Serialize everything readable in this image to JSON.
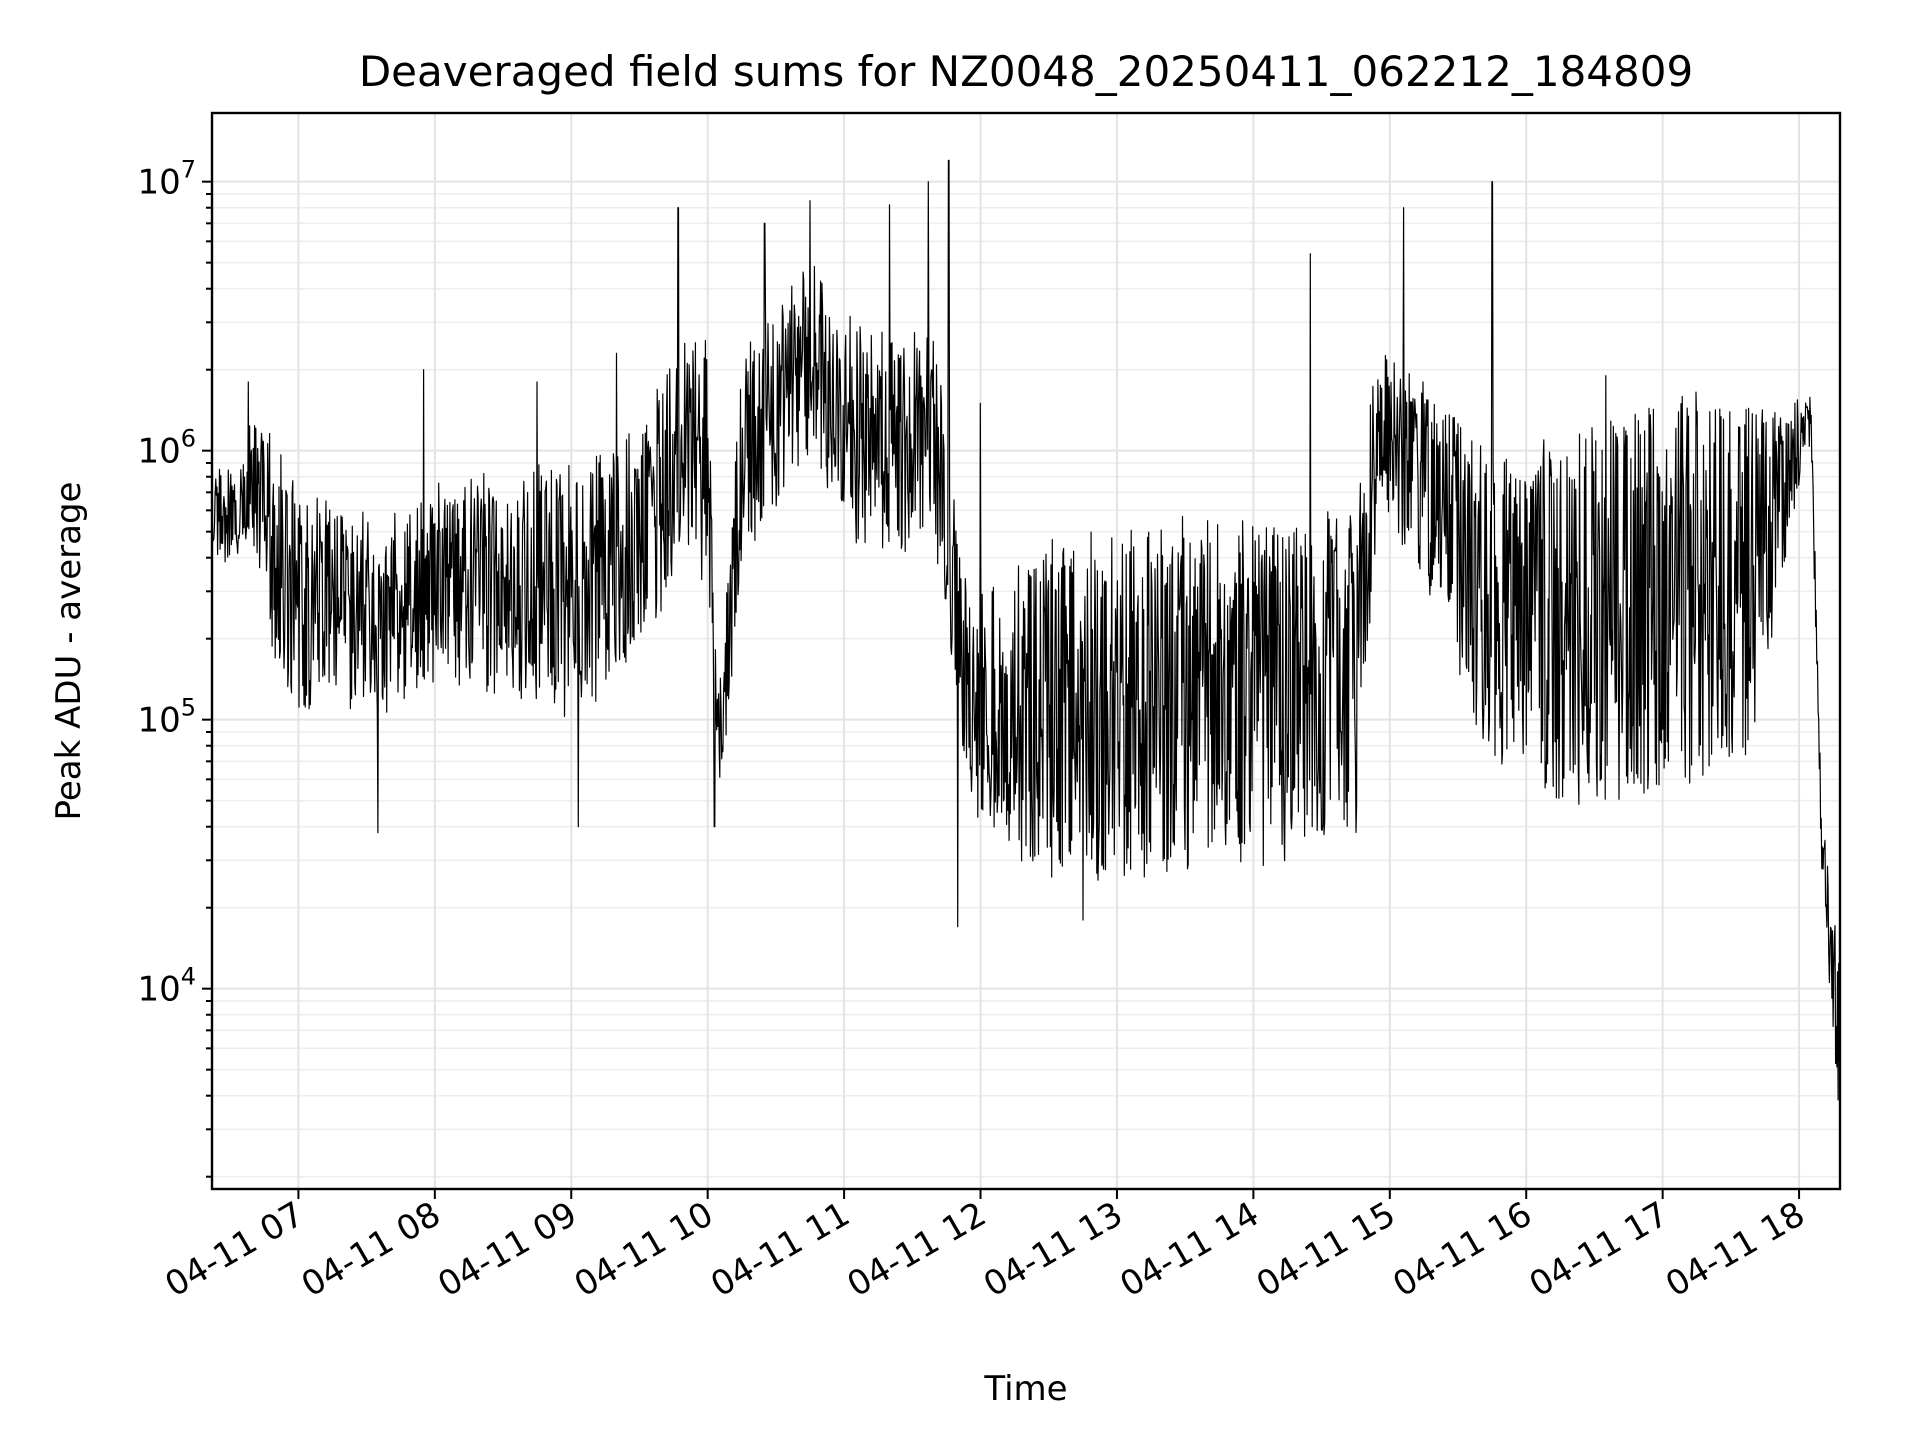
{
  "chart_data": {
    "type": "line",
    "title": "Deaveraged field sums for NZ0048_20250411_062212_184809",
    "xlabel": "Time",
    "ylabel": "Peak ADU - average",
    "yscale": "log",
    "xlim": [
      "2025-04-11 06:22",
      "2025-04-11 18:18"
    ],
    "ylim": [
      1800,
      18000000
    ],
    "grid": true,
    "x_ticks": [
      "04-11 07",
      "04-11 08",
      "04-11 09",
      "04-11 10",
      "04-11 11",
      "04-11 12",
      "04-11 13",
      "04-11 14",
      "04-11 15",
      "04-11 16",
      "04-11 17",
      "04-11 18"
    ],
    "y_ticks": [
      {
        "base": "10",
        "exp": "4",
        "value": 10000
      },
      {
        "base": "10",
        "exp": "5",
        "value": 100000
      },
      {
        "base": "10",
        "exp": "6",
        "value": 1000000
      },
      {
        "base": "10",
        "exp": "7",
        "value": 10000000
      }
    ],
    "series": [
      {
        "color": "#000000",
        "envelope": [
          {
            "x": "2025-04-11 06:22",
            "low": 420000,
            "high": 760000
          },
          {
            "x": "2025-04-11 06:35",
            "low": 450000,
            "high": 820000
          },
          {
            "x": "2025-04-11 06:40",
            "low": 480000,
            "high": 1400000
          },
          {
            "x": "2025-04-11 06:55",
            "low": 100000,
            "high": 800000
          },
          {
            "x": "2025-04-11 07:15",
            "low": 130000,
            "high": 600000
          },
          {
            "x": "2025-04-11 07:40",
            "low": 110000,
            "high": 500000
          },
          {
            "x": "2025-04-11 08:00",
            "low": 150000,
            "high": 700000
          },
          {
            "x": "2025-04-11 08:30",
            "low": 130000,
            "high": 750000
          },
          {
            "x": "2025-04-11 09:00",
            "low": 110000,
            "high": 800000
          },
          {
            "x": "2025-04-11 09:30",
            "low": 180000,
            "high": 1100000
          },
          {
            "x": "2025-04-11 09:50",
            "low": 450000,
            "high": 2600000
          },
          {
            "x": "2025-04-11 10:00",
            "low": 300000,
            "high": 2500000
          },
          {
            "x": "2025-04-11 10:05",
            "low": 50000,
            "high": 110000
          },
          {
            "x": "2025-04-11 10:15",
            "low": 400000,
            "high": 2500000
          },
          {
            "x": "2025-04-11 10:45",
            "low": 1000000,
            "high": 4500000
          },
          {
            "x": "2025-04-11 11:10",
            "low": 400000,
            "high": 2500000
          },
          {
            "x": "2025-04-11 11:40",
            "low": 500000,
            "high": 2600000
          },
          {
            "x": "2025-04-11 11:55",
            "low": 50000,
            "high": 250000
          },
          {
            "x": "2025-04-11 12:30",
            "low": 25000,
            "high": 420000
          },
          {
            "x": "2025-04-11 13:00",
            "low": 28000,
            "high": 450000
          },
          {
            "x": "2025-04-11 13:30",
            "low": 30000,
            "high": 500000
          },
          {
            "x": "2025-04-11 14:00",
            "low": 32000,
            "high": 520000
          },
          {
            "x": "2025-04-11 14:45",
            "low": 38000,
            "high": 550000
          },
          {
            "x": "2025-04-11 14:55",
            "low": 700000,
            "high": 2200000
          },
          {
            "x": "2025-04-11 15:20",
            "low": 300000,
            "high": 1500000
          },
          {
            "x": "2025-04-11 15:45",
            "low": 70000,
            "high": 900000
          },
          {
            "x": "2025-04-11 16:15",
            "low": 55000,
            "high": 1050000
          },
          {
            "x": "2025-04-11 16:45",
            "low": 55000,
            "high": 1400000
          },
          {
            "x": "2025-04-11 17:15",
            "low": 60000,
            "high": 1500000
          },
          {
            "x": "2025-04-11 17:40",
            "low": 80000,
            "high": 1450000
          },
          {
            "x": "2025-04-11 17:55",
            "low": 500000,
            "high": 1400000
          },
          {
            "x": "2025-04-11 18:05",
            "low": 1200000,
            "high": 1700000
          },
          {
            "x": "2025-04-11 18:10",
            "low": 30000,
            "high": 40000
          },
          {
            "x": "2025-04-11 18:18",
            "low": 2500,
            "high": 12000
          }
        ],
        "spikes": [
          {
            "x": "2025-04-11 06:38",
            "y": 1800000
          },
          {
            "x": "2025-04-11 07:55",
            "y": 2000000
          },
          {
            "x": "2025-04-11 08:45",
            "y": 1800000
          },
          {
            "x": "2025-04-11 09:20",
            "y": 2300000
          },
          {
            "x": "2025-04-11 09:47",
            "y": 8000000
          },
          {
            "x": "2025-04-11 10:25",
            "y": 7000000
          },
          {
            "x": "2025-04-11 10:45",
            "y": 8500000
          },
          {
            "x": "2025-04-11 11:20",
            "y": 8200000
          },
          {
            "x": "2025-04-11 11:37",
            "y": 10000000
          },
          {
            "x": "2025-04-11 11:46",
            "y": 12000000
          },
          {
            "x": "2025-04-11 12:00",
            "y": 1500000
          },
          {
            "x": "2025-04-11 14:25",
            "y": 5400000
          },
          {
            "x": "2025-04-11 15:06",
            "y": 8000000
          },
          {
            "x": "2025-04-11 15:45",
            "y": 10000000
          },
          {
            "x": "2025-04-11 16:35",
            "y": 1900000
          },
          {
            "x": "2025-04-11 12:45",
            "y": 18000
          },
          {
            "x": "2025-04-11 11:50",
            "y": 17000
          },
          {
            "x": "2025-04-11 09:03",
            "y": 40000
          },
          {
            "x": "2025-04-11 10:03",
            "y": 40000
          },
          {
            "x": "2025-04-11 07:35",
            "y": 38000
          }
        ]
      }
    ]
  }
}
